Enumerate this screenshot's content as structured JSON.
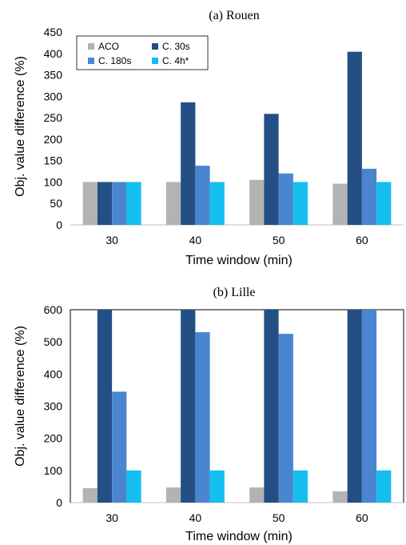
{
  "chart_data": [
    {
      "type": "bar",
      "title": "(a) Rouen",
      "xlabel": "Time window (min)",
      "ylabel": "Obj. value difference (%)",
      "categories": [
        "30",
        "40",
        "50",
        "60"
      ],
      "ylim": [
        0,
        450
      ],
      "yticks": [
        0,
        50,
        100,
        150,
        200,
        250,
        300,
        350,
        400,
        450
      ],
      "grid": false,
      "legend_position": "top-left",
      "series": [
        {
          "name": "ACO",
          "color": "#b3b3b3",
          "values": [
            100,
            100,
            105,
            96
          ]
        },
        {
          "name": "C. 30s",
          "color": "#234f84",
          "values": [
            100,
            286,
            259,
            404
          ]
        },
        {
          "name": "C. 180s",
          "color": "#4a86cf",
          "values": [
            100,
            138,
            120,
            131
          ]
        },
        {
          "name": "C. 4h*",
          "color": "#14bff0",
          "values": [
            100,
            100,
            100,
            100
          ]
        }
      ]
    },
    {
      "type": "bar",
      "title": "(b) Lille",
      "xlabel": "Time window (min)",
      "ylabel": "Obj. value difference (%)",
      "categories": [
        "30",
        "40",
        "50",
        "60"
      ],
      "ylim": [
        0,
        600
      ],
      "yticks": [
        0,
        100,
        200,
        300,
        400,
        500,
        600
      ],
      "grid": false,
      "legend_position": "none",
      "series": [
        {
          "name": "ACO",
          "color": "#b3b3b3",
          "values": [
            45,
            47,
            47,
            35
          ]
        },
        {
          "name": "C. 30s",
          "color": "#234f84",
          "values": [
            600,
            600,
            600,
            600
          ]
        },
        {
          "name": "C. 180s",
          "color": "#4a86cf",
          "values": [
            345,
            530,
            525,
            600
          ]
        },
        {
          "name": "C. 4h*",
          "color": "#14bff0",
          "values": [
            100,
            100,
            100,
            100
          ]
        }
      ]
    }
  ]
}
